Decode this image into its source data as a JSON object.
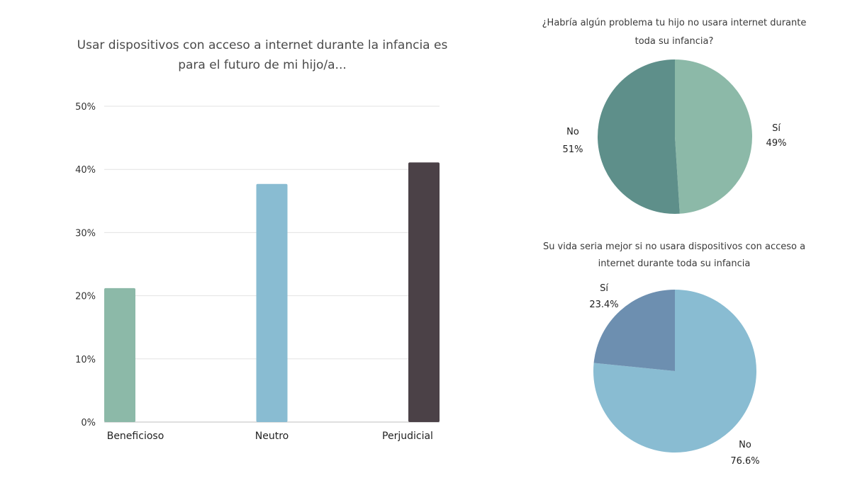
{
  "chart_data": [
    {
      "type": "bar",
      "title_lines": [
        "Usar dispositivos con acceso a internet durante la infancia es",
        "para el futuro de mi hijo/a..."
      ],
      "categories": [
        "Beneficioso",
        "Neutro",
        "Perjudicial"
      ],
      "values": [
        21.2,
        37.7,
        41.1
      ],
      "bar_colors": [
        "#8cb9a8",
        "#89bcd2",
        "#4b4147"
      ],
      "yticks": [
        "0%",
        "10%",
        "20%",
        "30%",
        "40%",
        "50%"
      ],
      "ylim": [
        0,
        50
      ],
      "grid": true
    },
    {
      "type": "pie",
      "title_lines": [
        "¿Habría algún problema tu hijo no usara internet durante",
        "toda su infancia?"
      ],
      "slices": [
        {
          "label": "Sí",
          "pct_label": "49%",
          "value": 49,
          "color": "#8cb9a8"
        },
        {
          "label": "No",
          "pct_label": "51%",
          "value": 51,
          "color": "#5e8f8a"
        }
      ]
    },
    {
      "type": "pie",
      "title_lines": [
        "Su vida seria mejor si no usara dispositivos con acceso a",
        "internet durante toda su infancia"
      ],
      "slices": [
        {
          "label": "No",
          "pct_label": "76.6%",
          "value": 76.6,
          "color": "#89bcd2"
        },
        {
          "label": "Sí",
          "pct_label": "23.4%",
          "value": 23.4,
          "color": "#6d8fb0"
        }
      ]
    }
  ]
}
